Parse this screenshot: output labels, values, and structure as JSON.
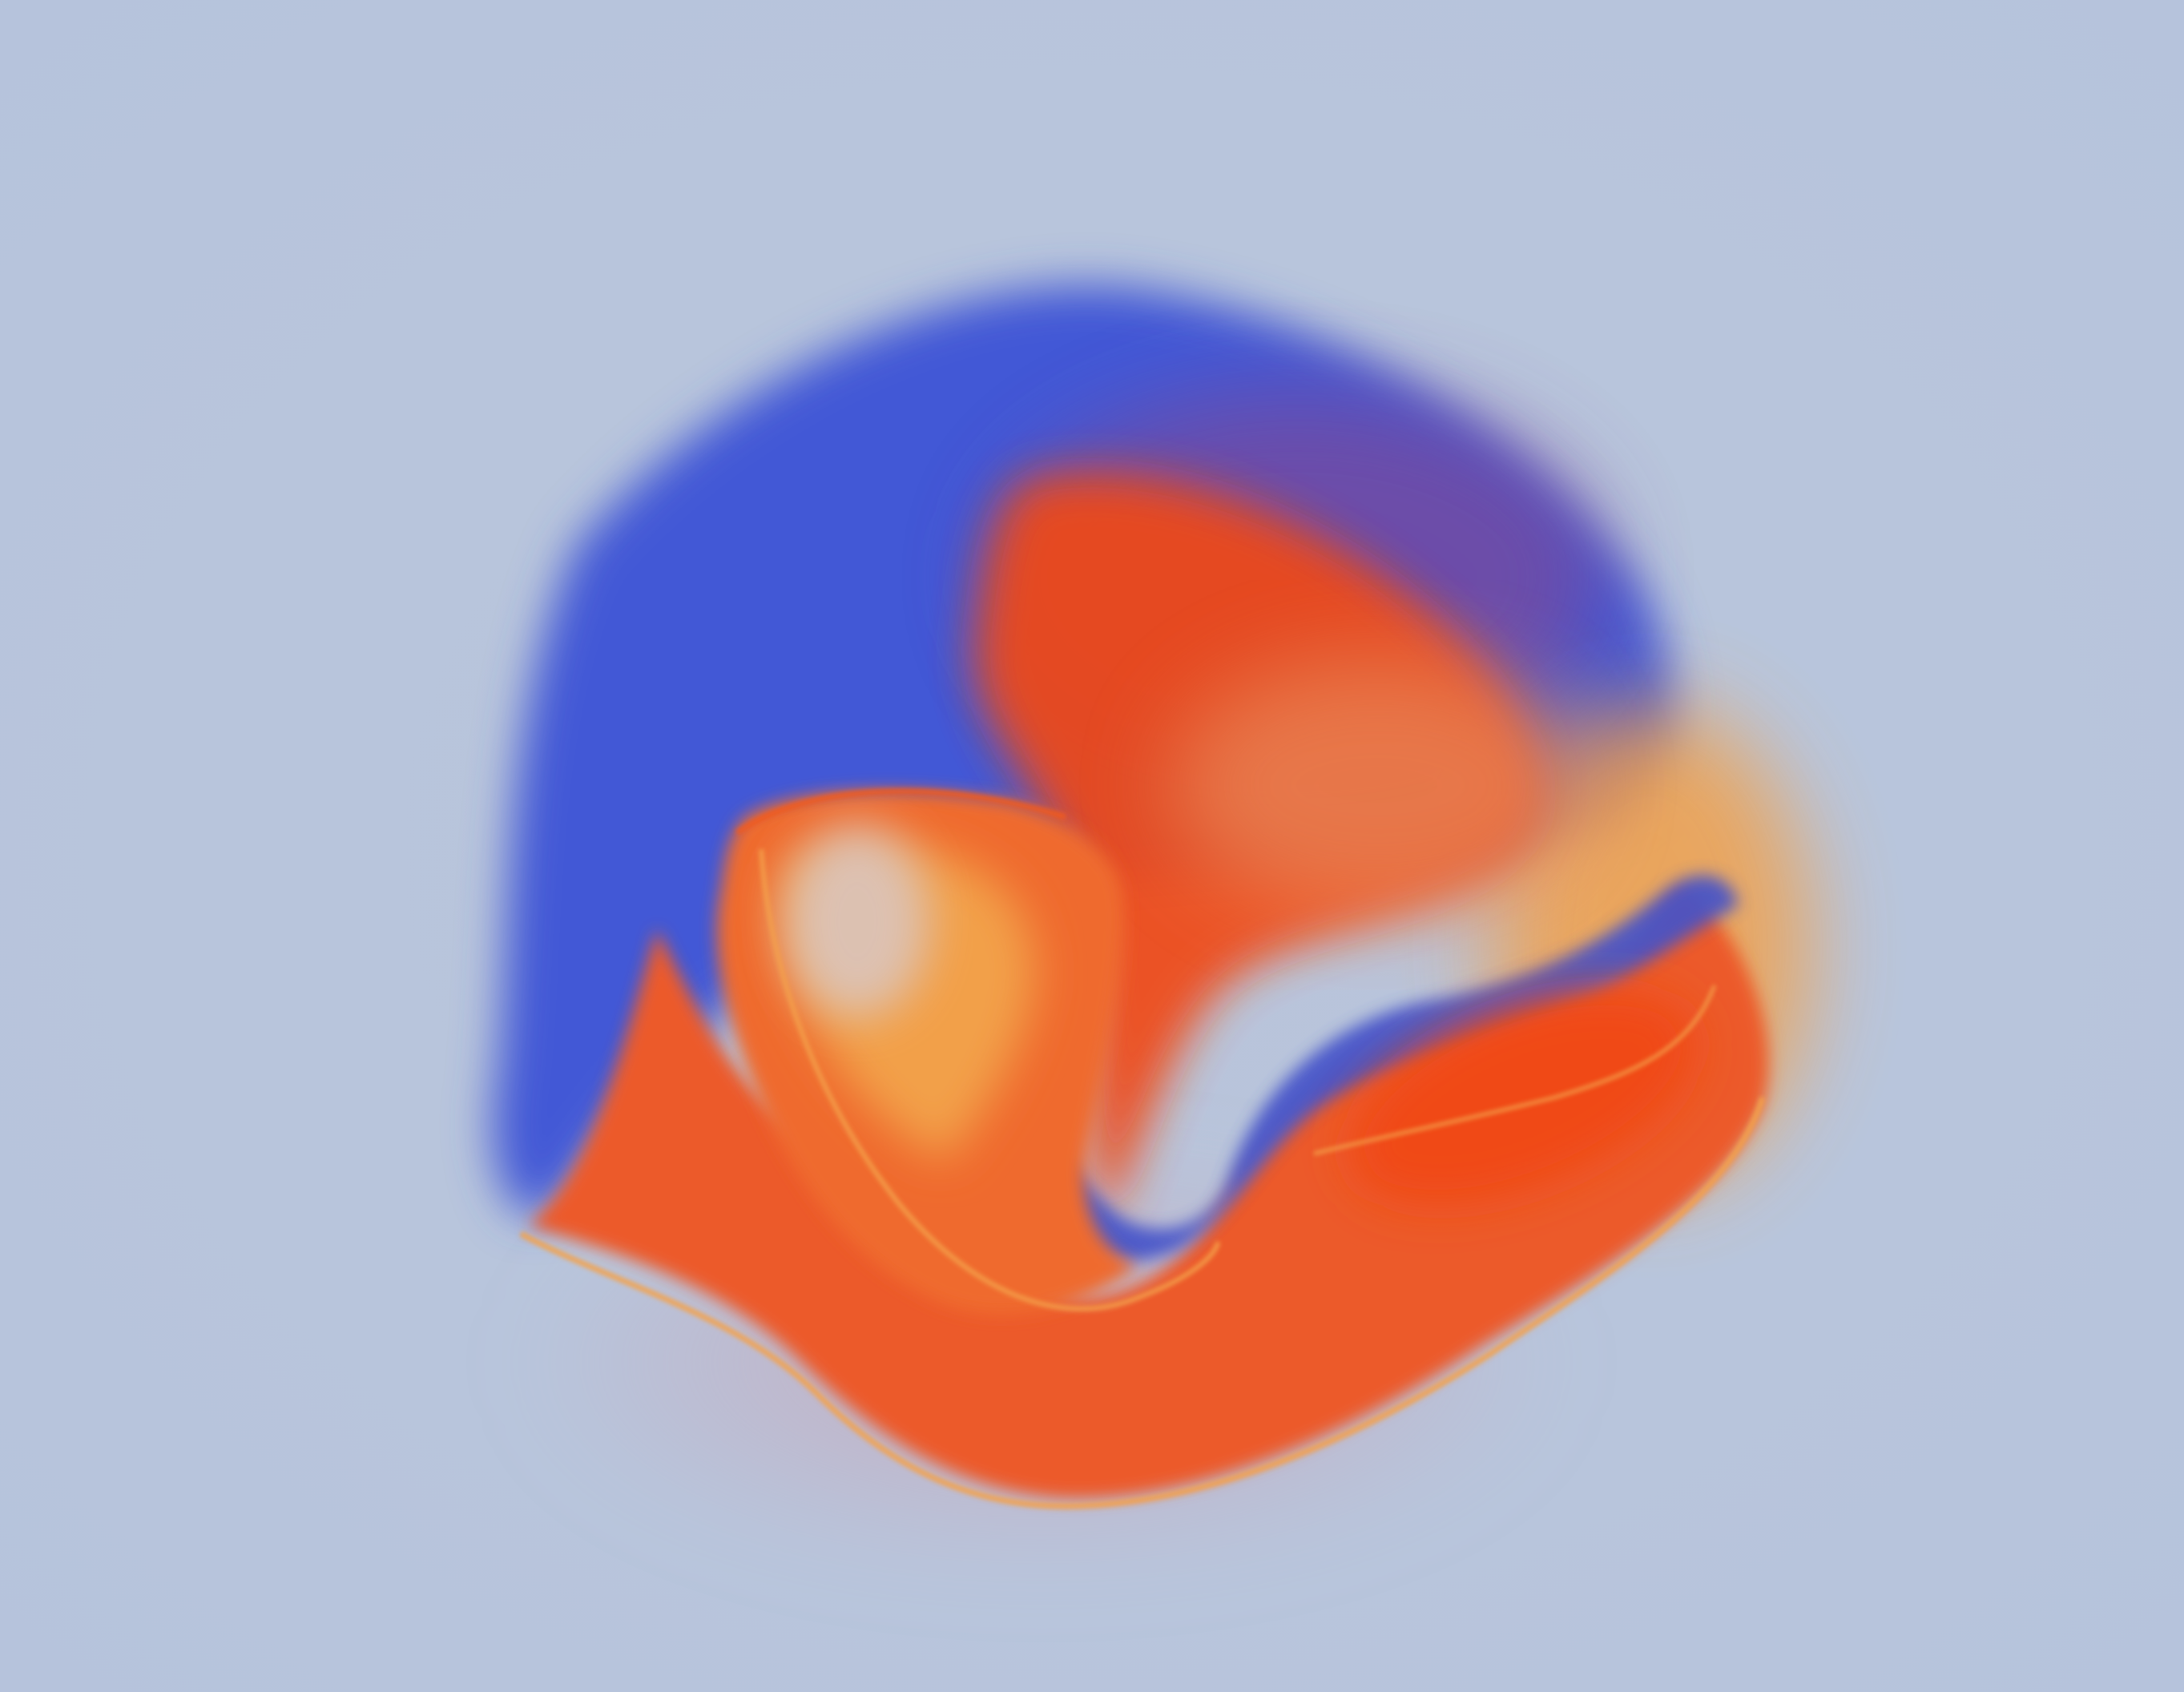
{
  "scene": {
    "icon": "fluid-swirl-artwork",
    "colors": {
      "background": "#b8c5dc",
      "blue": "#4358d6",
      "violet": "#7a4a9a",
      "red_orange": "#f04a18",
      "orange": "#f2a04a",
      "pale": "#d9c7c4"
    }
  }
}
